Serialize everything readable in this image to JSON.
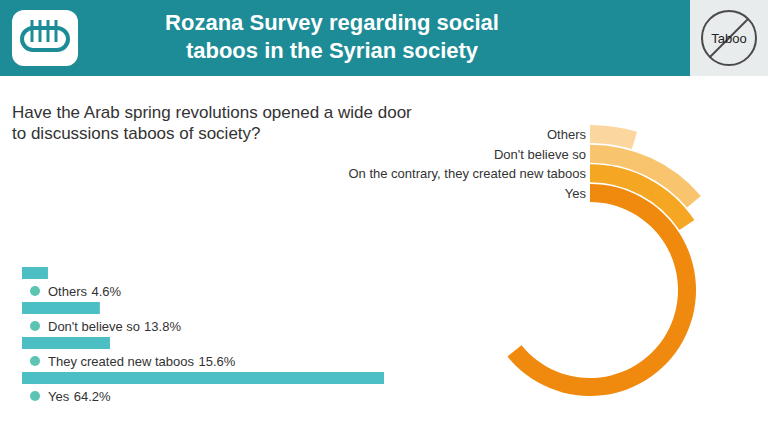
{
  "header": {
    "title": "Rozana Survey regarding social taboos in the Syrian society",
    "badge": "Taboo"
  },
  "chart_data": [
    {
      "type": "bar",
      "orientation": "horizontal",
      "title": "Have the Arab spring revolutions opened a wide door to discussions taboos of society?",
      "categories": [
        "Others",
        "Don't believe so",
        "They created new taboos",
        "Yes"
      ],
      "values": [
        4.6,
        13.8,
        15.6,
        64.2
      ],
      "value_labels": [
        "4.6%",
        "13.8%",
        "15.6%",
        "64.2%"
      ],
      "data_labels": true,
      "color": "#4bbfc4",
      "xlim": [
        0,
        64.2
      ],
      "tick_labels": false
    },
    {
      "type": "radial_bar",
      "categories": [
        "Others",
        "Don't believe so",
        "On the contrary, they created new taboos",
        "Yes"
      ],
      "values": [
        4.6,
        13.8,
        15.6,
        64.2
      ],
      "colors": [
        "#fbd69e",
        "#f9c46e",
        "#f5a623",
        "#ef8a0e"
      ],
      "ylim": [
        0,
        100
      ],
      "tick_labels": false
    }
  ]
}
